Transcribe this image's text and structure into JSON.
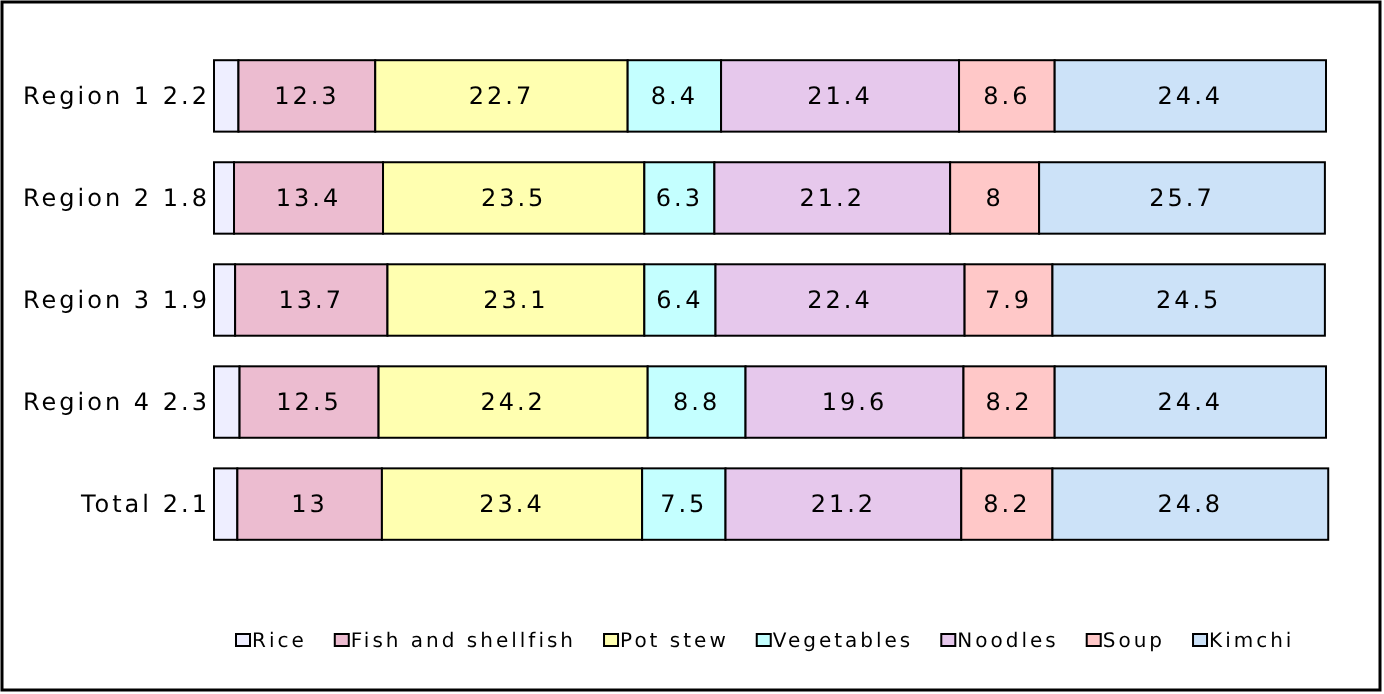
{
  "chart_data": {
    "type": "bar",
    "orientation": "horizontal",
    "stacked": true,
    "data_labels": true,
    "legend": "bottom",
    "xlim": [
      0,
      100
    ],
    "categories": [
      "Region 1",
      "Region 2",
      "Region 3",
      "Region 4",
      "Total"
    ],
    "series": [
      {
        "name": "Rice",
        "color": "#eeeeff",
        "values": [
          2.2,
          1.8,
          1.9,
          2.3,
          2.1
        ]
      },
      {
        "name": "Fish and shellfish",
        "color": "#ecbcd0",
        "values": [
          12.3,
          13.4,
          13.7,
          12.5,
          13
        ]
      },
      {
        "name": "Pot stew",
        "color": "#ffffb0",
        "values": [
          22.7,
          23.5,
          23.1,
          24.2,
          23.4
        ]
      },
      {
        "name": "Vegetables",
        "color": "#c4ffff",
        "values": [
          8.4,
          6.3,
          6.4,
          8.8,
          7.5
        ]
      },
      {
        "name": "Noodles",
        "color": "#e6c8ec",
        "values": [
          21.4,
          21.2,
          22.4,
          19.6,
          21.2
        ]
      },
      {
        "name": "Soup",
        "color": "#ffc8c8",
        "values": [
          8.6,
          8,
          7.9,
          8.2,
          8.2
        ]
      },
      {
        "name": "Kimchi",
        "color": "#cce2f8",
        "values": [
          24.4,
          25.7,
          24.5,
          24.4,
          24.8
        ]
      }
    ]
  }
}
